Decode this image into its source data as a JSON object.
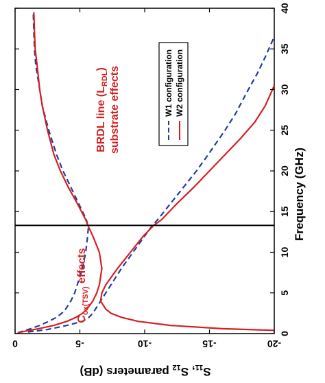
{
  "chart_data": {
    "type": "line",
    "orientation": "rotated-90-ccw",
    "xlabel": "Frequency (GHz)",
    "ylabel": "S11, S12 parameters (dB)",
    "xlim": [
      0,
      40
    ],
    "ylim": [
      -20,
      0
    ],
    "x_ticks": [
      0,
      5,
      10,
      15,
      20,
      25,
      30,
      35,
      40
    ],
    "y_ticks": [
      0,
      -5,
      -10,
      -15,
      -20
    ],
    "grid": false,
    "legend_position": "top-right",
    "vertical_marker_x": 13.3,
    "series": [
      {
        "name": "W1 configuration",
        "style": "dashed",
        "color": "#1f3da0",
        "curves": [
          {
            "x": [
              0.1,
              0.3,
              0.6,
              1,
              1.5,
              2,
              2.5,
              3,
              4,
              5,
              6,
              8,
              10,
              12,
              13,
              14,
              16,
              18,
              20,
              22,
              25,
              28,
              30,
              33,
              35,
              37,
              39.5
            ],
            "y": [
              -0.2,
              -0.6,
              -1.2,
              -1.9,
              -2.6,
              -3.2,
              -3.6,
              -3.9,
              -4.3,
              -4.6,
              -4.8,
              -5.2,
              -5.45,
              -5.6,
              -5.65,
              -5.5,
              -4.9,
              -4.3,
              -3.7,
              -3.2,
              -2.6,
              -2.1,
              -1.9,
              -1.6,
              -1.5,
              -1.45,
              -1.4
            ]
          },
          {
            "x": [
              0.2,
              0.5,
              1,
              1.5,
              2,
              2.5,
              3,
              3.5,
              4,
              5,
              6,
              8,
              10,
              12,
              13.3,
              14,
              16,
              18,
              20,
              22,
              25,
              27,
              30,
              32,
              34,
              36.5
            ],
            "y": [
              -1.0,
              -2.5,
              -4.0,
              -5.2,
              -5.7,
              -6.0,
              -6.2,
              -6.4,
              -6.6,
              -7.0,
              -7.4,
              -8.2,
              -9.1,
              -10.0,
              -10.6,
              -11.0,
              -12.0,
              -13.0,
              -14.0,
              -14.9,
              -16.2,
              -17.0,
              -18.0,
              -18.7,
              -19.3,
              -20.0
            ]
          }
        ]
      },
      {
        "name": "W2 configuration",
        "style": "solid",
        "color": "#d42020",
        "curves": [
          {
            "x": [
              0.1,
              0.3,
              0.6,
              1,
              1.5,
              2,
              2.5,
              3,
              4,
              5,
              6,
              8,
              10,
              12,
              13,
              14,
              16,
              18,
              20,
              22,
              25,
              28,
              30,
              33,
              35,
              37,
              39.5
            ],
            "y": [
              -0.2,
              -0.8,
              -1.8,
              -3.0,
              -4.0,
              -4.7,
              -5.2,
              -5.55,
              -6.0,
              -6.3,
              -6.5,
              -6.7,
              -6.5,
              -6.0,
              -5.7,
              -5.45,
              -4.8,
              -4.1,
              -3.5,
              -3.0,
              -2.5,
              -2.1,
              -1.9,
              -1.7,
              -1.55,
              -1.5,
              -1.45
            ]
          },
          {
            "x": [
              0.4,
              0.6,
              1,
              1.5,
              2,
              2.5,
              3,
              4,
              5,
              6,
              8,
              10,
              12,
              13.3,
              14,
              16,
              18,
              20,
              22,
              24,
              26,
              28,
              30.5
            ],
            "y": [
              -20.0,
              -16.0,
              -12.0,
              -9.5,
              -8.2,
              -7.4,
              -7.0,
              -6.6,
              -6.7,
              -7.0,
              -7.9,
              -8.9,
              -9.9,
              -10.7,
              -11.3,
              -12.5,
              -13.8,
              -15.0,
              -16.2,
              -17.4,
              -18.5,
              -19.3,
              -20.0
            ]
          }
        ]
      }
    ],
    "annotations": [
      {
        "label": "BRDL line (LRDL) substrate effects",
        "color": "#d42020"
      },
      {
        "label": "Cox(TSV) effects",
        "color": "#d42020"
      }
    ]
  },
  "text": {
    "xlabel": "Frequency (GHz)",
    "ylabel_main": "S",
    "ylabel_sub1": "11",
    "ylabel_mid": ", S",
    "ylabel_sub2": "12",
    "ylabel_tail": " parameters (dB)",
    "legend_w1": "W1 configuration",
    "legend_w2": "W2 configuration",
    "anno1_line1_a": "BRDL line (L",
    "anno1_line1_sub": "RDL",
    "anno1_line1_b": ")",
    "anno1_line2": "substrate effects",
    "anno2_a": "C",
    "anno2_sub": "ox(TSV)",
    "anno2_b": " effects"
  }
}
